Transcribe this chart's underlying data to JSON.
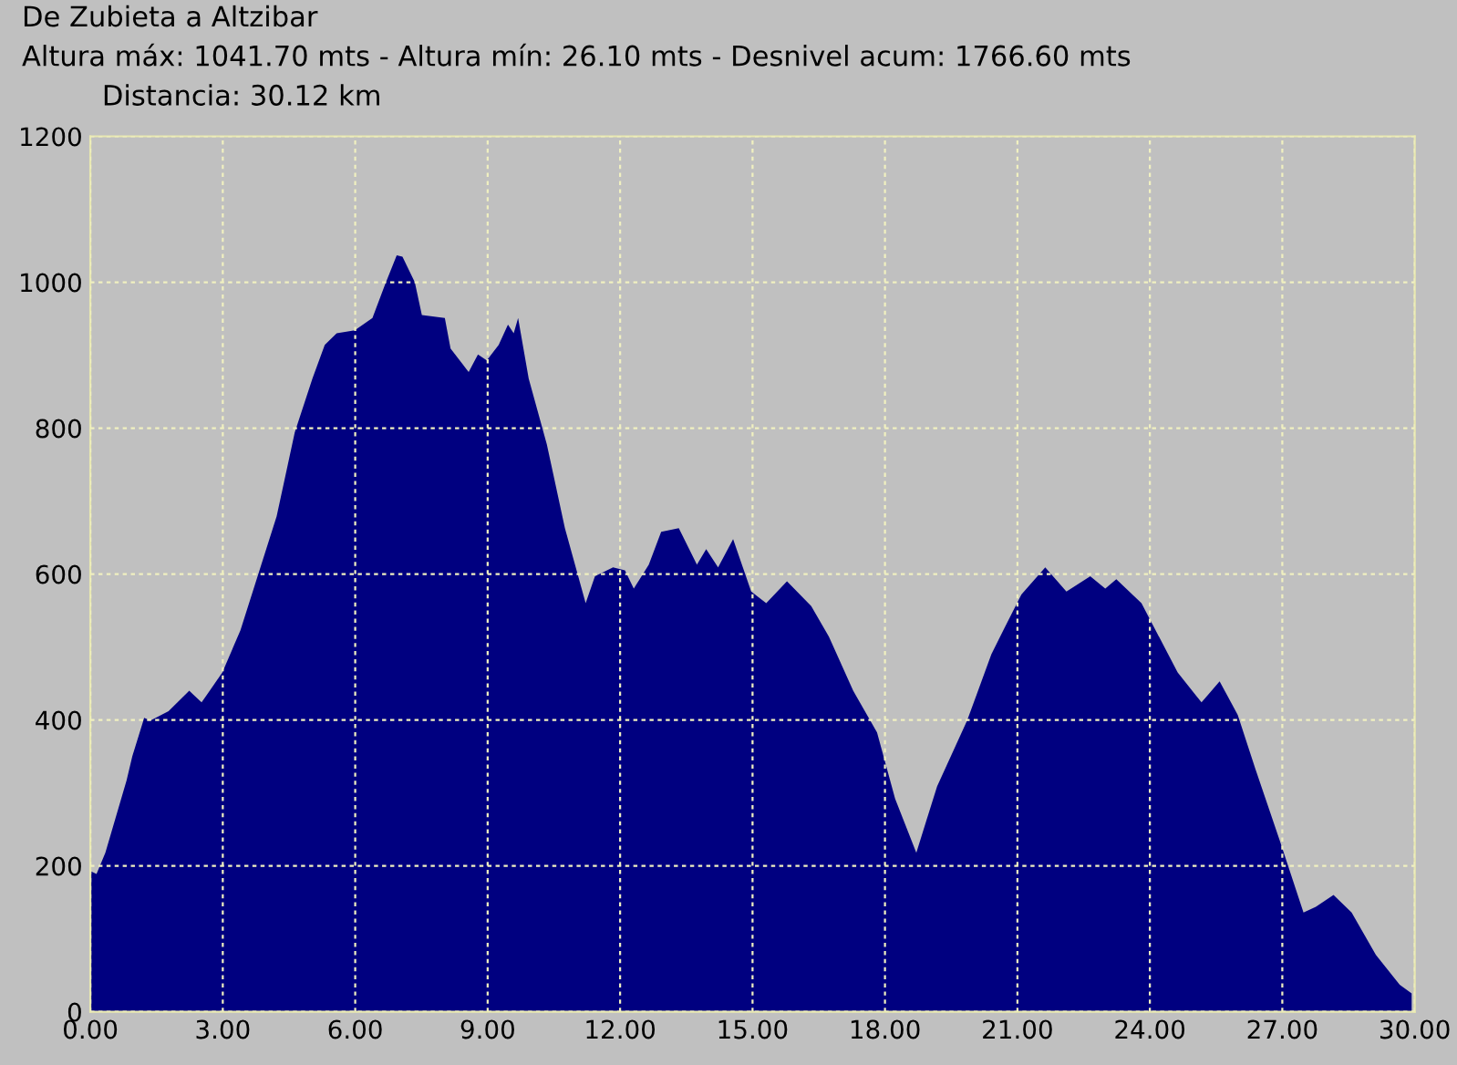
{
  "chart_data": {
    "type": "area",
    "title": "De Zubieta a Altzibar",
    "subtitle": "Altura máx: 1041.70 mts - Altura mín: 26.10 mts - Desnivel acum: 1766.60 mts",
    "annotations": [
      "Distancia: 30.12 km"
    ],
    "x": [
      0,
      0.14,
      0.34,
      0.82,
      0.95,
      1.22,
      1.36,
      1.77,
      2.24,
      2.52,
      2.99,
      3.4,
      3.81,
      4.22,
      4.63,
      5.03,
      5.31,
      5.58,
      5.99,
      6.39,
      6.67,
      6.94,
      7.07,
      7.35,
      7.51,
      8.03,
      8.16,
      8.57,
      8.78,
      8.98,
      9.25,
      9.46,
      9.59,
      9.69,
      9.93,
      10.34,
      10.75,
      11.22,
      11.43,
      11.84,
      12.11,
      12.31,
      12.65,
      12.93,
      13.33,
      13.74,
      13.95,
      14.22,
      14.56,
      14.97,
      15.31,
      15.78,
      16.33,
      16.73,
      17.28,
      17.82,
      18.23,
      18.71,
      19.18,
      19.86,
      20.41,
      20.68,
      21.09,
      21.63,
      22.11,
      22.65,
      22.99,
      23.24,
      23.81,
      24.63,
      25.17,
      25.58,
      25.99,
      26.39,
      26.94,
      27.48,
      27.76,
      28.16,
      28.57,
      29.12,
      29.66,
      29.93
    ],
    "series": [
      {
        "color": "#000080",
        "values": [
          193,
          189,
          218,
          317,
          350,
          403,
          399,
          412,
          440,
          424,
          465,
          523,
          601,
          679,
          794,
          868,
          914,
          930,
          934,
          951,
          996,
          1037,
          1035,
          1000,
          955,
          951,
          909,
          877,
          901,
          893,
          914,
          942,
          930,
          951,
          868,
          778,
          663,
          560,
          597,
          609,
          605,
          580,
          613,
          658,
          663,
          613,
          634,
          609,
          648,
          576,
          560,
          590,
          556,
          514,
          440,
          383,
          292,
          218,
          309,
          399,
          490,
          523,
          572,
          609,
          576,
          597,
          580,
          593,
          560,
          465,
          424,
          453,
          407,
          333,
          235,
          136,
          144,
          160,
          136,
          78,
          37,
          25
        ]
      }
    ],
    "xlim": [
      0,
      30
    ],
    "xticks": [
      {
        "value": 0,
        "label": "0.00"
      },
      {
        "value": 3,
        "label": "3.00"
      },
      {
        "value": 6,
        "label": "6.00"
      },
      {
        "value": 9,
        "label": "9.00"
      },
      {
        "value": 12,
        "label": "12.00"
      },
      {
        "value": 15,
        "label": "15.00"
      },
      {
        "value": 18,
        "label": "18.00"
      },
      {
        "value": 21,
        "label": "21.00"
      },
      {
        "value": 24,
        "label": "24.00"
      },
      {
        "value": 27,
        "label": "27.00"
      },
      {
        "value": 30,
        "label": "30.00"
      }
    ],
    "ylim": [
      0,
      1200
    ],
    "yticks": [
      0,
      200,
      400,
      600,
      800,
      1000,
      1200
    ],
    "grid": true
  }
}
